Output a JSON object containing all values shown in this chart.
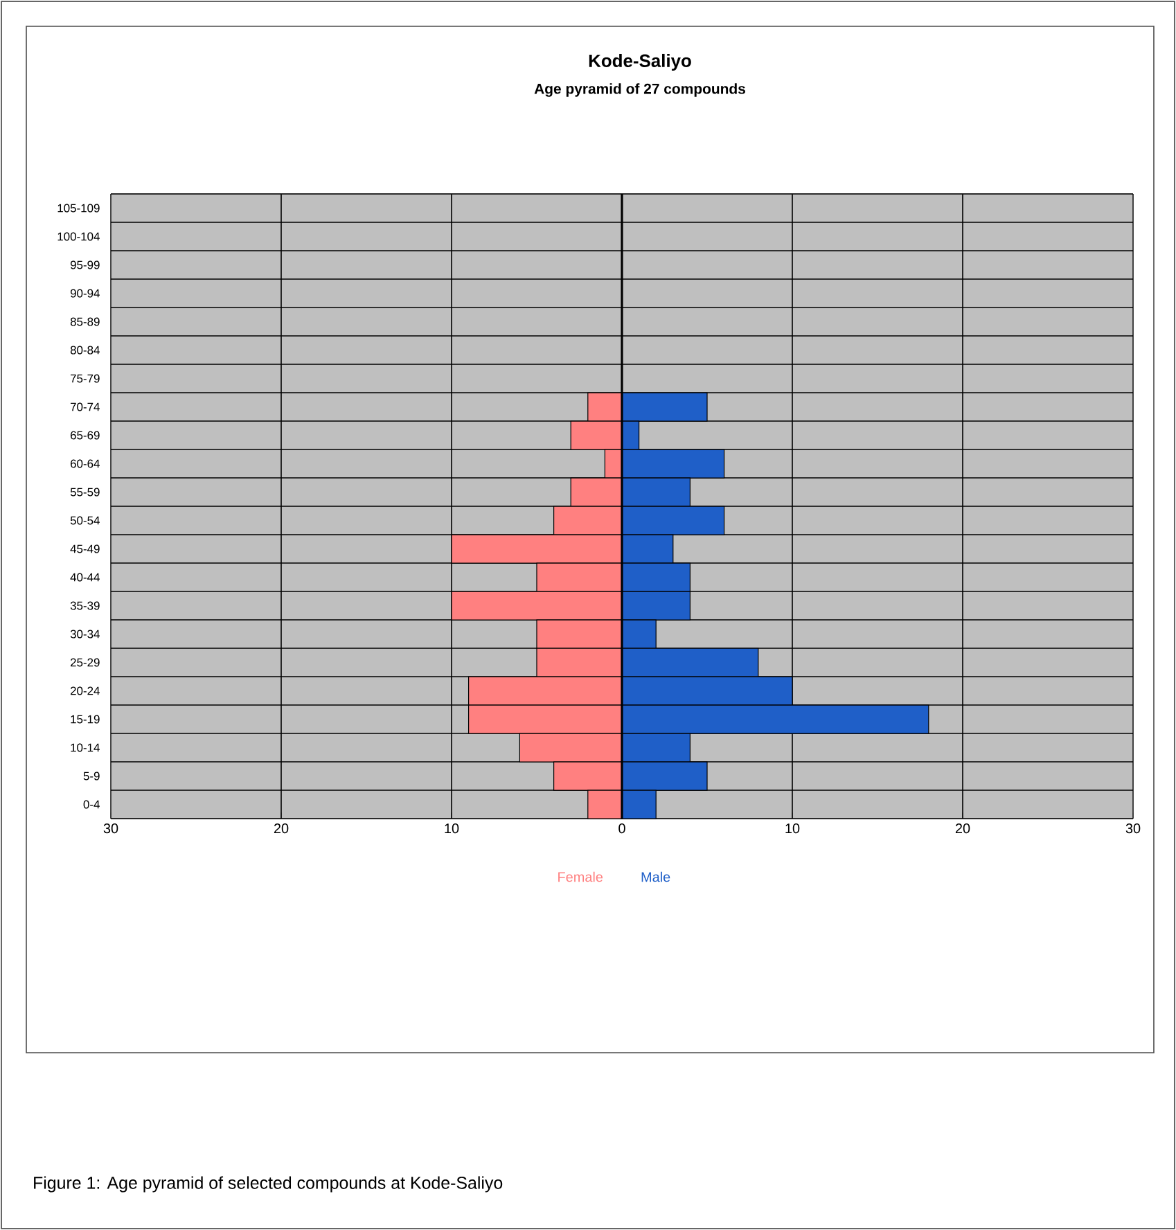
{
  "chart_data": {
    "type": "bar",
    "orientation": "horizontal",
    "title": "Kode-Saliyo",
    "subtitle": "Age pyramid of 27 compounds",
    "categories": [
      "105-109",
      "100-104",
      "95-99",
      "90-94",
      "85-89",
      "80-84",
      "75-79",
      "70-74",
      "65-69",
      "60-64",
      "55-59",
      "50-54",
      "45-49",
      "40-44",
      "35-39",
      "30-34",
      "25-29",
      "20-24",
      "15-19",
      "10-14",
      "5-9",
      "0-4"
    ],
    "series": [
      {
        "name": "Female",
        "color": "#ff8080",
        "values": [
          null,
          null,
          null,
          null,
          null,
          null,
          null,
          -2,
          -3,
          -1,
          -3,
          -4,
          -10,
          -5,
          -10,
          -5,
          -5,
          -9,
          -9,
          -6,
          -4,
          -2
        ]
      },
      {
        "name": "Male",
        "color": "#1f5fc8",
        "values": [
          null,
          null,
          null,
          null,
          null,
          null,
          null,
          5,
          1,
          6,
          4,
          6,
          3,
          4,
          4,
          2,
          8,
          10,
          18,
          4,
          5,
          2
        ]
      }
    ],
    "xlim": [
      -30,
      30
    ],
    "xticks": [
      {
        "value": -30,
        "label": "30"
      },
      {
        "value": -20,
        "label": "20"
      },
      {
        "value": -10,
        "label": "10"
      },
      0,
      10,
      20,
      30
    ],
    "grid": true,
    "stacked": true,
    "annotations": [
      "Figure 1: Age pyramid of selected compounds at Kode-Saliyo"
    ]
  }
}
